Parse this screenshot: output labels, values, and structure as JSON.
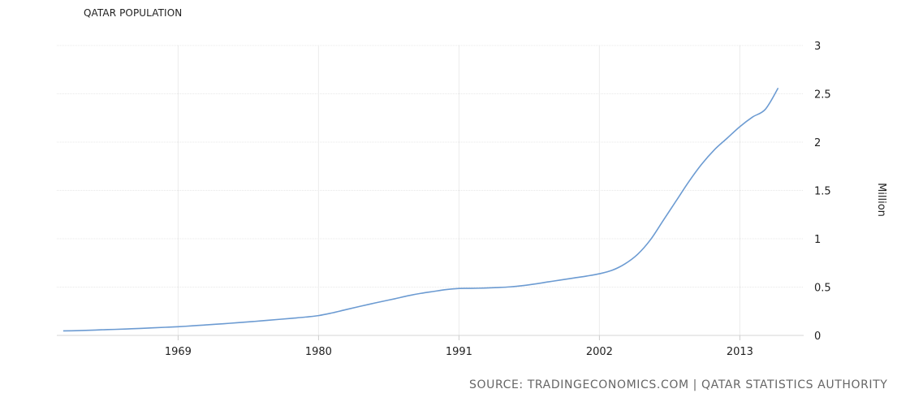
{
  "chart_data": {
    "type": "line",
    "title": "QATAR POPULATION",
    "ylabel": "Million",
    "xlabel": "",
    "source": "SOURCE: TRADINGECONOMICS.COM | QATAR STATISTICS AUTHORITY",
    "x_ticks": [
      "1969",
      "1980",
      "1991",
      "2002",
      "2013"
    ],
    "y_ticks": [
      "0",
      "0.5",
      "1",
      "1.5",
      "2",
      "2.5",
      "3"
    ],
    "xlim": [
      1959.5,
      2018
    ],
    "ylim": [
      0,
      3
    ],
    "grid": true,
    "y_axis_side": "right",
    "line_color": "#6c9bd2",
    "series": [
      {
        "x": [
          1960,
          1961,
          1962,
          1963,
          1964,
          1965,
          1966,
          1967,
          1968,
          1969,
          1970,
          1971,
          1972,
          1973,
          1974,
          1975,
          1976,
          1977,
          1978,
          1979,
          1980,
          1981,
          1982,
          1983,
          1984,
          1985,
          1986,
          1987,
          1988,
          1989,
          1990,
          1991,
          1992,
          1993,
          1994,
          1995,
          1996,
          1997,
          1998,
          1999,
          2000,
          2001,
          2002,
          2003,
          2004,
          2005,
          2006,
          2007,
          2008,
          2009,
          2010,
          2011,
          2012,
          2013,
          2014,
          2015,
          2016
        ],
        "values": [
          0.047,
          0.049,
          0.053,
          0.058,
          0.062,
          0.067,
          0.072,
          0.078,
          0.084,
          0.09,
          0.098,
          0.107,
          0.116,
          0.125,
          0.135,
          0.145,
          0.156,
          0.167,
          0.178,
          0.19,
          0.205,
          0.231,
          0.262,
          0.293,
          0.323,
          0.352,
          0.38,
          0.41,
          0.435,
          0.455,
          0.474,
          0.486,
          0.487,
          0.49,
          0.495,
          0.502,
          0.515,
          0.533,
          0.554,
          0.574,
          0.594,
          0.614,
          0.638,
          0.674,
          0.74,
          0.84,
          0.99,
          1.19,
          1.39,
          1.59,
          1.77,
          1.92,
          2.04,
          2.16,
          2.26,
          2.34,
          2.56
        ]
      }
    ]
  }
}
